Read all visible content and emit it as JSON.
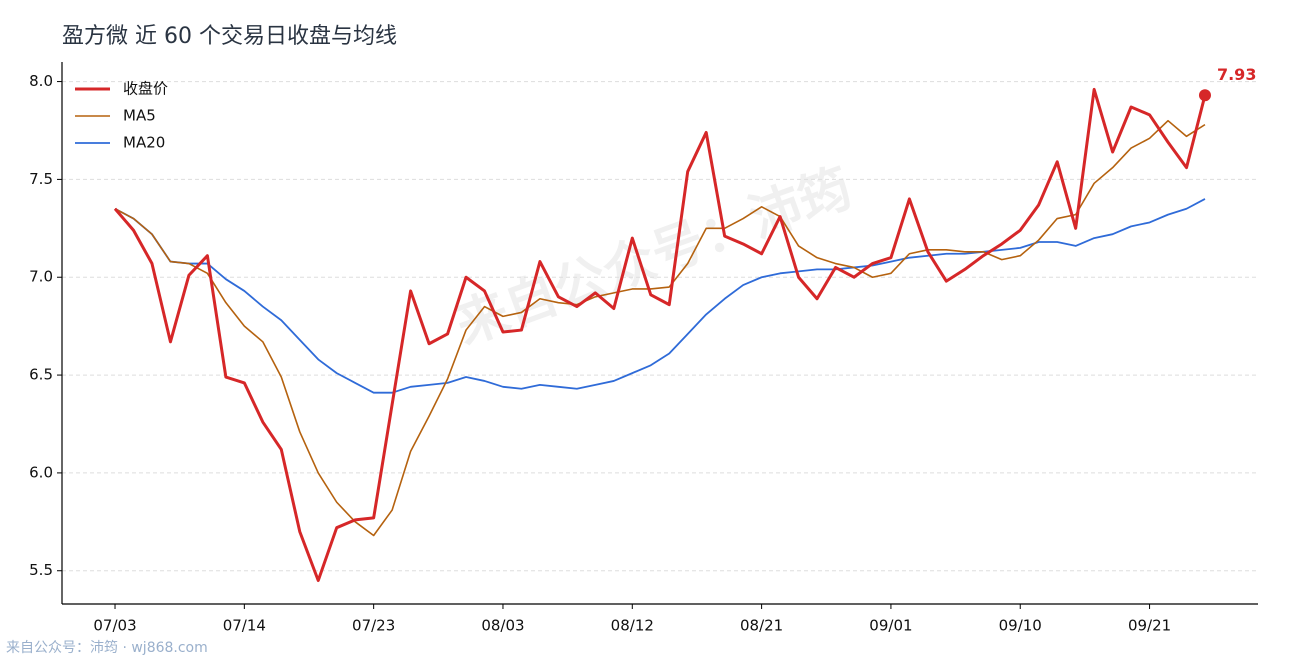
{
  "chart_data": {
    "type": "line",
    "title": "盈方微 近 60 个交易日收盘与均线",
    "watermark": "来自公众号：沛筠",
    "footer": "来自公众号：沛筠 · wj868.com",
    "categories": [
      "07/03",
      null,
      null,
      null,
      null,
      null,
      null,
      "07/14",
      null,
      null,
      null,
      null,
      null,
      null,
      "07/23",
      null,
      null,
      null,
      null,
      null,
      null,
      "08/03",
      null,
      null,
      null,
      null,
      null,
      null,
      "08/12",
      null,
      null,
      null,
      null,
      null,
      null,
      "08/21",
      null,
      null,
      null,
      null,
      null,
      null,
      "09/01",
      null,
      null,
      null,
      null,
      null,
      null,
      "09/10",
      null,
      null,
      null,
      null,
      null,
      null,
      "09/21",
      null,
      null,
      null
    ],
    "series": [
      {
        "name": "收盘价",
        "color": "#d62728",
        "width": 3,
        "values": [
          7.35,
          7.24,
          7.07,
          6.67,
          7.01,
          7.11,
          6.49,
          6.46,
          6.26,
          6.12,
          5.7,
          5.45,
          5.72,
          5.76,
          5.77,
          6.35,
          6.93,
          6.66,
          6.71,
          7.0,
          6.93,
          6.72,
          6.73,
          7.08,
          6.9,
          6.85,
          6.92,
          6.84,
          7.2,
          6.91,
          6.86,
          7.54,
          7.74,
          7.21,
          7.17,
          7.12,
          7.31,
          7.0,
          6.89,
          7.05,
          7.0,
          7.07,
          7.1,
          7.4,
          7.13,
          6.98,
          7.04,
          7.11,
          7.17,
          7.24,
          7.37,
          7.59,
          7.25,
          7.96,
          7.64,
          7.87,
          7.83,
          7.69,
          7.56,
          7.93
        ]
      },
      {
        "name": "MA5",
        "color": "#b5620f",
        "width": 1.6,
        "values": [
          7.35,
          7.3,
          7.22,
          7.08,
          7.07,
          7.02,
          6.87,
          6.75,
          6.67,
          6.49,
          6.21,
          6.0,
          5.85,
          5.75,
          5.68,
          5.81,
          6.11,
          6.29,
          6.48,
          6.73,
          6.85,
          6.8,
          6.82,
          6.89,
          6.87,
          6.86,
          6.9,
          6.92,
          6.94,
          6.94,
          6.95,
          7.07,
          7.25,
          7.25,
          7.3,
          7.36,
          7.31,
          7.16,
          7.1,
          7.07,
          7.05,
          7.0,
          7.02,
          7.12,
          7.14,
          7.14,
          7.13,
          7.13,
          7.09,
          7.11,
          7.19,
          7.3,
          7.32,
          7.48,
          7.56,
          7.66,
          7.71,
          7.8,
          7.72,
          7.78
        ]
      },
      {
        "name": "MA20",
        "color": "#2f6bd8",
        "width": 1.8,
        "values": [
          7.35,
          7.3,
          7.22,
          7.08,
          7.07,
          7.07,
          6.99,
          6.93,
          6.85,
          6.78,
          6.68,
          6.58,
          6.51,
          6.46,
          6.41,
          6.41,
          6.44,
          6.45,
          6.46,
          6.49,
          6.47,
          6.44,
          6.43,
          6.45,
          6.44,
          6.43,
          6.45,
          6.47,
          6.51,
          6.55,
          6.61,
          6.71,
          6.81,
          6.89,
          6.96,
          7.0,
          7.02,
          7.03,
          7.04,
          7.04,
          7.05,
          7.06,
          7.08,
          7.1,
          7.11,
          7.12,
          7.12,
          7.13,
          7.14,
          7.15,
          7.18,
          7.18,
          7.16,
          7.2,
          7.22,
          7.26,
          7.28,
          7.32,
          7.35,
          7.4
        ]
      }
    ],
    "ylim": [
      5.33,
      8.1
    ],
    "yticks": [
      {
        "value": 5.5,
        "label": "5.5"
      },
      {
        "value": 6,
        "label": "6.0"
      },
      {
        "value": 6.5,
        "label": "6.5"
      },
      {
        "value": 7,
        "label": "7.0"
      },
      {
        "value": 7.5,
        "label": "7.5"
      },
      {
        "value": 8,
        "label": "8.0"
      }
    ],
    "grid": true,
    "legend": "upper-left"
  }
}
